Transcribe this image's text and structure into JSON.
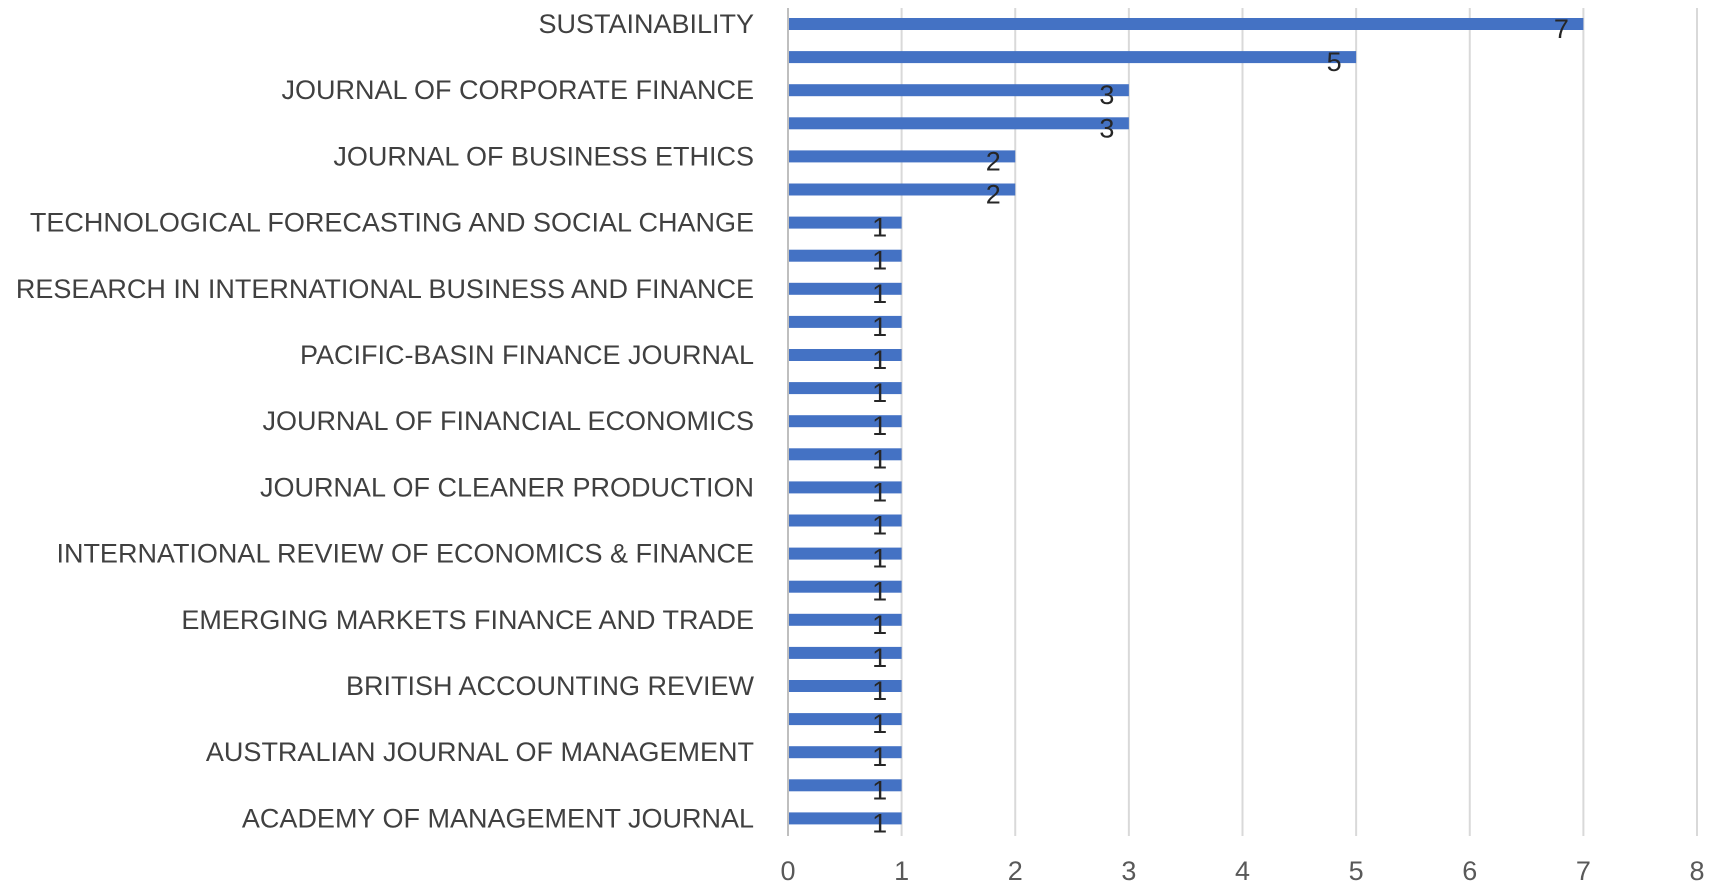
{
  "chart_data": {
    "type": "bar",
    "orientation": "horizontal",
    "categories": [
      "SUSTAINABILITY",
      "",
      "JOURNAL OF CORPORATE FINANCE",
      "",
      "JOURNAL OF BUSINESS ETHICS",
      "",
      "TECHNOLOGICAL FORECASTING AND SOCIAL CHANGE",
      "",
      "RESEARCH IN INTERNATIONAL BUSINESS AND FINANCE",
      "",
      "PACIFIC-BASIN FINANCE JOURNAL",
      "",
      "JOURNAL OF FINANCIAL ECONOMICS",
      "",
      "JOURNAL OF CLEANER PRODUCTION",
      "",
      "INTERNATIONAL REVIEW OF ECONOMICS & FINANCE",
      "",
      "EMERGING MARKETS FINANCE AND TRADE",
      "",
      "BRITISH ACCOUNTING REVIEW",
      "",
      "AUSTRALIAN JOURNAL OF MANAGEMENT",
      "",
      "ACADEMY OF MANAGEMENT JOURNAL"
    ],
    "values": [
      7,
      5,
      3,
      3,
      2,
      2,
      1,
      1,
      1,
      1,
      1,
      1,
      1,
      1,
      1,
      1,
      1,
      1,
      1,
      1,
      1,
      1,
      1,
      1,
      1
    ],
    "data_labels": [
      "7",
      "5",
      "3",
      "3",
      "2",
      "2",
      "1",
      "1",
      "1",
      "1",
      "1",
      "1",
      "1",
      "1",
      "1",
      "1",
      "1",
      "1",
      "1",
      "1",
      "1",
      "1",
      "1",
      "1",
      "1"
    ],
    "x_ticks": [
      "0",
      "1",
      "2",
      "3",
      "4",
      "5",
      "6",
      "7",
      "8"
    ],
    "xlim": [
      0,
      8
    ],
    "title": "",
    "xlabel": "",
    "ylabel": "",
    "grid": "vertical",
    "legend": "none",
    "bar_color": "#4472c4"
  }
}
